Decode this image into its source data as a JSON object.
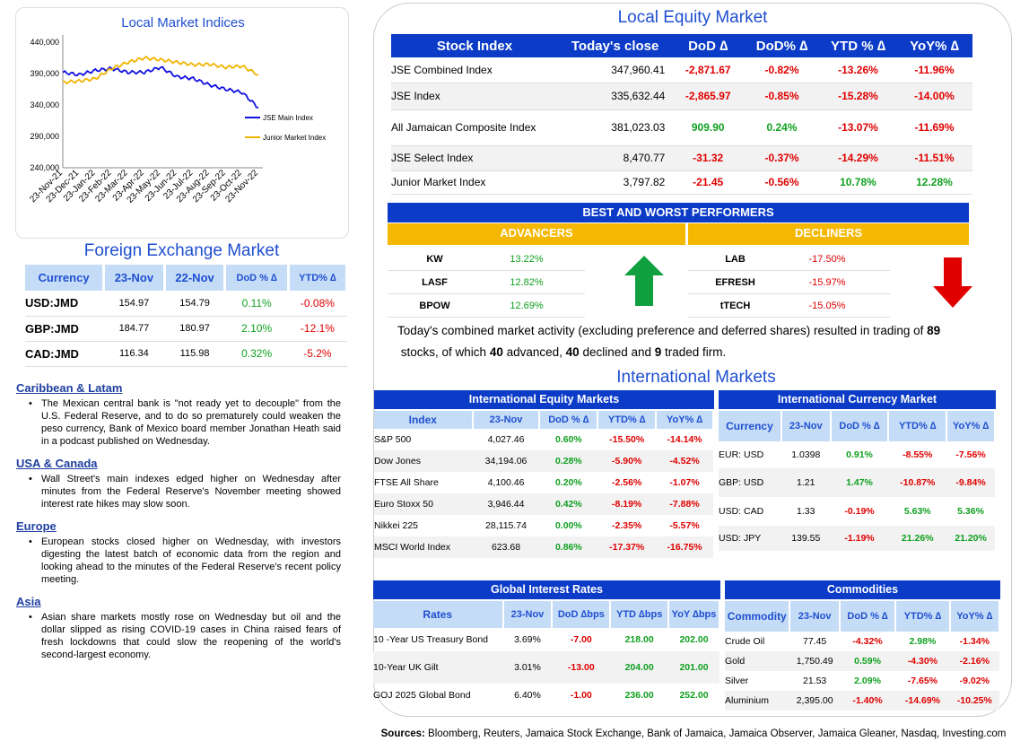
{
  "chart": {
    "title": "Local Market Indices",
    "yticks": [
      "440,000",
      "390,000",
      "340,000",
      "290,000",
      "240,000"
    ],
    "xticks": [
      "23-Nov-21",
      "23-Dec-21",
      "23-Jan-22",
      "23-Feb-22",
      "23-Mar-22",
      "23-Apr-22",
      "23-May-22",
      "23-Jun-22",
      "23-Jul-22",
      "23-Aug-22",
      "23-Sep-22",
      "23-Oct-22",
      "23-Nov-22"
    ],
    "legend": [
      "JSE Main Index",
      "Junior Market Index"
    ],
    "colors": {
      "jse": "#1010e0",
      "junior": "#f0b400"
    }
  },
  "chart_data": {
    "type": "line",
    "title": "Local Market Indices",
    "xlabel": "",
    "ylabel": "",
    "ylim": [
      240000,
      440000
    ],
    "categories": [
      "23-Nov-21",
      "23-Dec-21",
      "23-Jan-22",
      "23-Feb-22",
      "23-Mar-22",
      "23-Apr-22",
      "23-May-22",
      "23-Jun-22",
      "23-Jul-22",
      "23-Aug-22",
      "23-Sep-22",
      "23-Oct-22",
      "23-Nov-22"
    ],
    "series": [
      {
        "name": "JSE Main Index",
        "values": [
          392000,
          388000,
          395000,
          398000,
          392000,
          392000,
          400000,
          385000,
          382000,
          372000,
          365000,
          360000,
          335600
        ]
      },
      {
        "name": "Junior Market Index",
        "values": [
          376000,
          378000,
          382000,
          398000,
          408000,
          415000,
          412000,
          408000,
          404000,
          405000,
          400000,
          402000,
          388000
        ]
      }
    ],
    "legend": "right"
  },
  "fx": {
    "title": "Foreign Exchange Market",
    "headers": [
      "Currency",
      "23-Nov",
      "22-Nov",
      "DoD % ∆",
      "YTD% ∆"
    ],
    "rows": [
      [
        "USD:JMD",
        "154.97",
        "154.79",
        "0.11%",
        "-0.08%"
      ],
      [
        "GBP:JMD",
        "184.77",
        "180.97",
        "2.10%",
        "-12.1%"
      ],
      [
        "CAD:JMD",
        "116.34",
        "115.98",
        "0.32%",
        "-5.2%"
      ]
    ]
  },
  "news": [
    {
      "heading": "Caribbean & Latam",
      "text": "The Mexican central bank is \"not ready yet to decouple\" from the U.S. Federal Reserve, and to do so prematurely could weaken the peso currency, Bank of Mexico board member Jonathan Heath said in a podcast published on Wednesday."
    },
    {
      "heading": "USA & Canada",
      "text": "Wall Street's main indexes edged higher on Wednesday after minutes from the Federal Reserve's November meeting showed interest rate hikes may slow soon."
    },
    {
      "heading": "Europe",
      "text": "European stocks closed higher on Wednesday, with investors digesting the latest batch of economic data from the region and looking ahead to the minutes of the Federal Reserve's recent policy meeting."
    },
    {
      "heading": "Asia",
      "text": "Asian share markets mostly rose on Wednesday but oil and the dollar slipped as rising COVID-19 cases in China raised fears of fresh lockdowns that could slow the reopening of the world's second-largest economy."
    }
  ],
  "equity": {
    "title": "Local Equity Market",
    "headers": [
      "Stock Index",
      "Today's close",
      "DoD  ∆",
      "DoD% ∆",
      "YTD % ∆",
      "YoY% ∆"
    ],
    "rows": [
      [
        "JSE Combined Index",
        "347,960.41",
        "-2,871.67",
        "-0.82%",
        "-13.26%",
        "-11.96%"
      ],
      [
        "JSE Index",
        "335,632.44",
        "-2,865.97",
        "-0.85%",
        "-15.28%",
        "-14.00%"
      ],
      [
        "All Jamaican Composite Index",
        "381,023.03",
        "909.90",
        "0.24%",
        "-13.07%",
        "-11.69%"
      ],
      [
        "JSE Select Index",
        "8,470.77",
        "-31.32",
        "-0.37%",
        "-14.29%",
        "-11.51%"
      ],
      [
        "Junior Market Index",
        "3,797.82",
        "-21.45",
        "-0.56%",
        "10.78%",
        "12.28%"
      ]
    ]
  },
  "performers": {
    "title": "BEST AND WORST PERFORMERS",
    "adv_label": "ADVANCERS",
    "dec_label": "DECLINERS",
    "advancers": [
      [
        "KW",
        "13.22%"
      ],
      [
        "LASF",
        "12.82%"
      ],
      [
        "BPOW",
        "12.69%"
      ]
    ],
    "decliners": [
      [
        "LAB",
        "-17.50%"
      ],
      [
        "EFRESH",
        "-15.97%"
      ],
      [
        "tTECH",
        "-15.05%"
      ]
    ]
  },
  "summary": {
    "p1": "Today's combined market activity (excluding preference and deferred shares) resulted in trading of ",
    "stocks": "89",
    "p2": "stocks, of which ",
    "adv": "40",
    "p3": " advanced, ",
    "dec": "40",
    "p4": " declined and ",
    "firm": "9",
    "p5": " traded firm."
  },
  "intl_title": "International Markets",
  "ieq": {
    "title": "International Equity Markets",
    "headers": [
      "Index",
      "23-Nov",
      "DoD % ∆",
      "YTD% ∆",
      "YoY% ∆"
    ],
    "rows": [
      [
        "S&P 500",
        "4,027.46",
        "0.60%",
        "-15.50%",
        "-14.14%"
      ],
      [
        "Dow Jones",
        "34,194.06",
        "0.28%",
        "-5.90%",
        "-4.52%"
      ],
      [
        "FTSE All Share",
        "4,100.46",
        "0.20%",
        "-2.56%",
        "-1.07%"
      ],
      [
        "Euro Stoxx 50",
        "3,946.44",
        "0.42%",
        "-8.19%",
        "-7.88%"
      ],
      [
        "Nikkei 225",
        "28,115.74",
        "0.00%",
        "-2.35%",
        "-5.57%"
      ],
      [
        "MSCI World Index",
        "623.68",
        "0.86%",
        "-17.37%",
        "-16.75%"
      ]
    ]
  },
  "icur": {
    "title": "International Currency Market",
    "headers": [
      "Currency",
      "23-Nov",
      "DoD % ∆",
      "YTD% ∆",
      "YoY% ∆"
    ],
    "rows": [
      [
        "EUR: USD",
        "1.0398",
        "0.91%",
        "-8.55%",
        "-7.56%"
      ],
      [
        "GBP: USD",
        "1.21",
        "1.47%",
        "-10.87%",
        "-9.84%"
      ],
      [
        "USD: CAD",
        "1.33",
        "-0.19%",
        "5.63%",
        "5.36%"
      ],
      [
        "USD: JPY",
        "139.55",
        "-1.19%",
        "21.26%",
        "21.20%"
      ]
    ]
  },
  "rates": {
    "title": "Global Interest Rates",
    "headers": [
      "Rates",
      "23-Nov",
      "DoD ∆bps",
      "YTD ∆bps",
      "YoY ∆bps"
    ],
    "rows": [
      [
        "10 -Year US Treasury Bond",
        "3.69%",
        "-7.00",
        "218.00",
        "202.00"
      ],
      [
        "10-Year UK Gilt",
        "3.01%",
        "-13.00",
        "204.00",
        "201.00"
      ],
      [
        "GOJ 2025 Global Bond",
        "6.40%",
        "-1.00",
        "236.00",
        "252.00"
      ]
    ]
  },
  "comm": {
    "title": "Commodities",
    "headers": [
      "Commodity",
      "23-Nov",
      "DoD % ∆",
      "YTD% ∆",
      "YoY% ∆"
    ],
    "rows": [
      [
        "Crude Oil",
        "77.45",
        "-4.32%",
        "2.98%",
        "-1.34%"
      ],
      [
        "Gold",
        "1,750.49",
        "0.59%",
        "-4.30%",
        "-2.16%"
      ],
      [
        "Silver",
        "21.53",
        "2.09%",
        "-7.65%",
        "-9.02%"
      ],
      [
        "Aluminium",
        "2,395.00",
        "-1.40%",
        "-14.69%",
        "-10.25%"
      ]
    ]
  },
  "sources": {
    "label": "Sources:",
    "text": " Bloomberg, Reuters, Jamaica Stock Exchange, Bank of Jamaica, Jamaica Observer, Jamaica Gleaner, Nasdaq, Investing.com"
  }
}
